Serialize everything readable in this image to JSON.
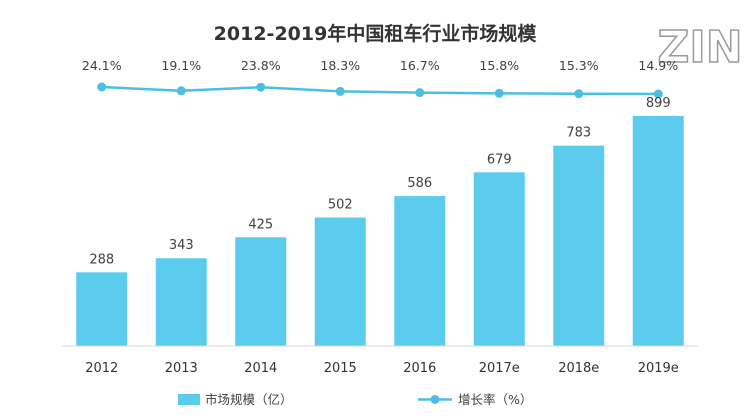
{
  "title": "2012-2019年中国租车行业市场规模",
  "logo_text": "ZIN",
  "chart_data": {
    "type": "bar",
    "title": "2012-2019年中国租车行业市场规模",
    "categories": [
      "2012",
      "2013",
      "2014",
      "2015",
      "2016",
      "2017e",
      "2018e",
      "2019e"
    ],
    "series": [
      {
        "name": "市场规模（亿）",
        "type": "bar",
        "color": "#5BCBEE",
        "values": [
          288,
          343,
          425,
          502,
          586,
          679,
          783,
          899
        ],
        "labels": [
          "288",
          "343",
          "425",
          "502",
          "586",
          "679",
          "783",
          "899"
        ]
      },
      {
        "name": "增长率（%）",
        "type": "line",
        "color": "#4BBFE3",
        "values": [
          24.1,
          19.1,
          23.8,
          18.3,
          16.7,
          15.8,
          15.3,
          14.9
        ],
        "labels": [
          "24.1%",
          "19.1%",
          "23.8%",
          "18.3%",
          "16.7%",
          "15.8%",
          "15.3%",
          "14.9%"
        ]
      }
    ],
    "ylim": [
      0,
      1000
    ],
    "legend": "bottom",
    "grid": false
  }
}
